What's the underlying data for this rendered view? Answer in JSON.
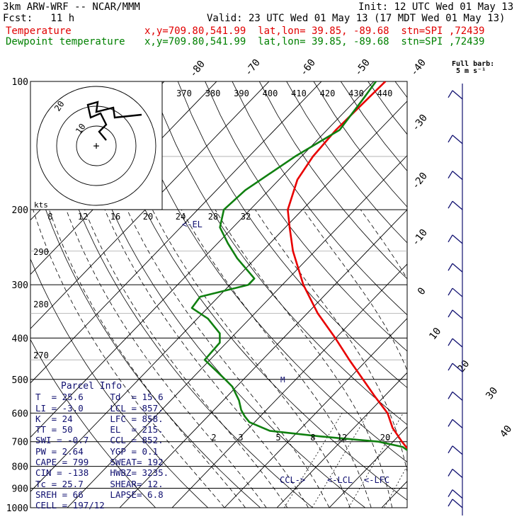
{
  "header": {
    "model": "3km ARW-WRF -- NCAR/MMM",
    "init": "Init: 12 UTC Wed 01 May 13",
    "fcst": "Fcst:   11 h",
    "valid": "Valid: 23 UTC Wed 01 May 13 (17 MDT Wed 01 May 13)",
    "temp_label": "Temperature",
    "temp_loc": "x,y=709.80,541.99  lat,lon= 39.85, -89.68  stn=SPI ,72439",
    "dew_label": "Dewpoint temperature",
    "dew_loc": "x,y=709.80,541.99  lat,lon= 39.85, -89.68  stn=SPI ,72439"
  },
  "barb_legend": {
    "line1": "Full barb:",
    "line2": "5 m s⁻¹"
  },
  "colors": {
    "temperature": "#e80000",
    "dewpoint": "#108010",
    "wind": "#101070",
    "grid": "#000000"
  },
  "chart_data": {
    "type": "line",
    "title": "",
    "pressure_levels": [
      100,
      200,
      300,
      400,
      500,
      600,
      700,
      800,
      900,
      1000
    ],
    "pressure_labels": [
      "100",
      "200",
      "300",
      "400",
      "500",
      "600",
      "700",
      "800",
      "900",
      "1000"
    ],
    "isotherm_labels": [
      "-80",
      "-70",
      "-60",
      "-50",
      "-40",
      "-30",
      "-20",
      "-10",
      "0",
      "10",
      "20",
      "30",
      "40"
    ],
    "theta_labels": [
      "370",
      "380",
      "390",
      "400",
      "410",
      "420",
      "430",
      "440"
    ],
    "theta_side_labels": [
      "290",
      "280",
      "270"
    ],
    "mixing_ratio_labels": [
      "2",
      "3",
      "5",
      "8",
      "12",
      "20"
    ],
    "hodo_speed_labels": [
      "8",
      "12",
      "16",
      "20",
      "24",
      "28",
      "32"
    ],
    "hodo_ring_labels": [
      "20",
      "10"
    ],
    "hodo_unit": "kts",
    "series": [
      {
        "name": "Temperature",
        "color": "#e80000",
        "p": [
          1000,
          950,
          900,
          850,
          820,
          750,
          700,
          650,
          600,
          550,
          500,
          450,
          400,
          350,
          300,
          250,
          220,
          200,
          170,
          150,
          130,
          100
        ],
        "t": [
          29.0,
          22.0,
          16.3,
          12.5,
          9.8,
          6.0,
          1.7,
          -2.6,
          -6.3,
          -11.6,
          -17.2,
          -23.4,
          -30.1,
          -38.0,
          -46.0,
          -54.2,
          -59.2,
          -62.8,
          -66.5,
          -67.8,
          -68.3,
          -67.8
        ]
      },
      {
        "name": "Dewpoint temperature",
        "color": "#108010",
        "p": [
          1000,
          950,
          900,
          870,
          850,
          820,
          790,
          750,
          720,
          700,
          680,
          660,
          630,
          610,
          590,
          560,
          520,
          500,
          450,
          410,
          390,
          360,
          340,
          320,
          300,
          290,
          260,
          240,
          220,
          200,
          180,
          150,
          130,
          110,
          100
        ],
        "t": [
          15.7,
          14.5,
          13.0,
          11.7,
          10.5,
          9.5,
          8.5,
          6.2,
          2.8,
          -2.8,
          -15.0,
          -25.5,
          -31.0,
          -33.0,
          -34.8,
          -37.0,
          -40.8,
          -43.5,
          -51.0,
          -51.3,
          -53.0,
          -58.0,
          -63.0,
          -63.5,
          -56.5,
          -56.5,
          -63.5,
          -68.0,
          -72.5,
          -75.0,
          -74.5,
          -71.2,
          -67.6,
          -68.8,
          -69.6
        ]
      }
    ],
    "annotations": {
      "el": "<-EL",
      "ccl": "CCL->",
      "lcl": "<-LCL",
      "lfc": "<-LFC"
    },
    "parcel_info": {
      "title": "Parcel Info",
      "rows": [
        [
          "T  =",
          "25.6",
          "Td  =",
          "15.6"
        ],
        [
          "LI =",
          "-3.0",
          "LCL =",
          "857."
        ],
        [
          "K  =",
          "24",
          "LFC =",
          "858."
        ],
        [
          "TT =",
          "50",
          "EL  =",
          "215."
        ],
        [
          "SWI =",
          "-0.7",
          "CCL =",
          "852."
        ],
        [
          "PW =",
          "2.64",
          "YGP =",
          "0.1"
        ],
        [
          "CAPE =",
          "799",
          "SWEAT=",
          "192"
        ],
        [
          "CIN =",
          "-138",
          "HWBZ=",
          "3235."
        ],
        [
          "Tc =",
          "25.7",
          "SHEAR=",
          "12."
        ],
        [
          "SREH =",
          "66",
          "LAPSE=",
          "6.8"
        ],
        [
          "CELL =",
          "197/12",
          "",
          ""
        ]
      ]
    },
    "wind_barbs": {
      "unit": "m/s",
      "pressure": [
        110,
        140,
        170,
        200,
        240,
        280,
        320,
        360,
        420,
        480,
        560,
        650,
        750,
        850,
        950,
        1000
      ]
    }
  }
}
